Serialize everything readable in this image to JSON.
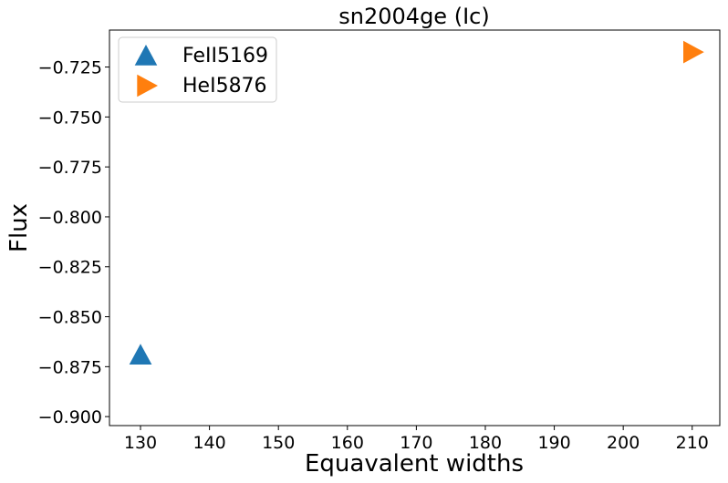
{
  "chart_data": {
    "type": "scatter",
    "title": "sn2004ge (Ic)",
    "xlabel": "Equavalent widths",
    "ylabel": "Flux",
    "xlim": [
      125.5,
      214.0
    ],
    "ylim": [
      -0.9045,
      -0.7065
    ],
    "xticks": [
      130,
      140,
      150,
      160,
      170,
      180,
      190,
      200,
      210
    ],
    "xtick_labels": [
      "130",
      "140",
      "150",
      "160",
      "170",
      "180",
      "190",
      "200",
      "210"
    ],
    "yticks": [
      -0.725,
      -0.75,
      -0.775,
      -0.8,
      -0.825,
      -0.85,
      -0.875,
      -0.9
    ],
    "ytick_labels": [
      "−0.725",
      "−0.750",
      "−0.775",
      "−0.800",
      "−0.825",
      "−0.850",
      "−0.875",
      "−0.900"
    ],
    "grid": false,
    "legend_position": "top-left",
    "series": [
      {
        "name": "FeII5169",
        "marker": "triangle-up",
        "color": "#1f77b4",
        "points": [
          {
            "x": 130,
            "y": -0.8695
          }
        ]
      },
      {
        "name": "HeI5876",
        "marker": "triangle-right",
        "color": "#ff7f0e",
        "points": [
          {
            "x": 210,
            "y": -0.7175
          }
        ]
      }
    ]
  }
}
